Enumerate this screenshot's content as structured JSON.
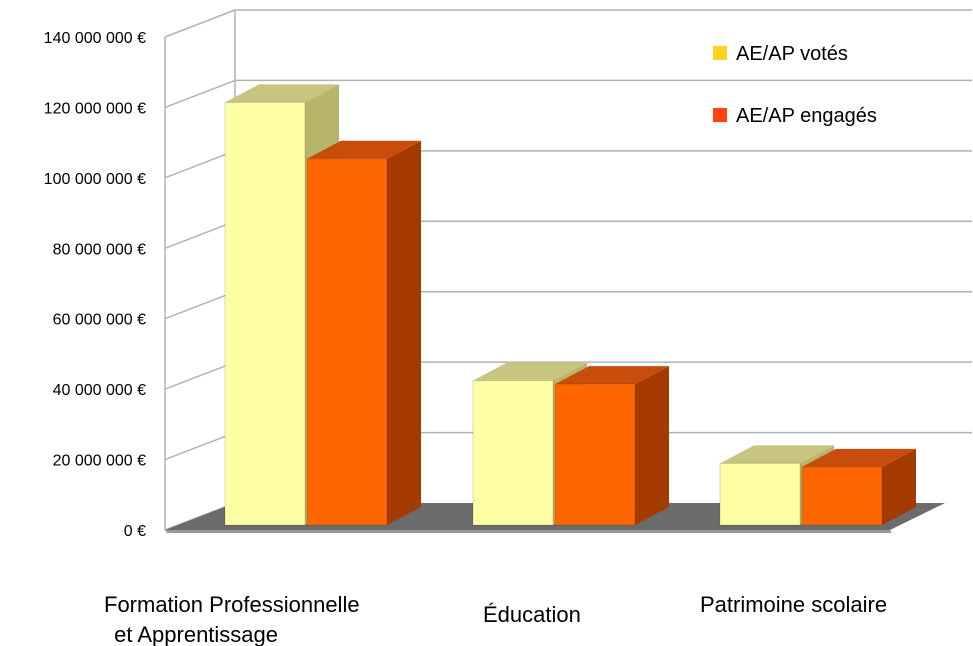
{
  "chart_data": {
    "type": "bar",
    "categories": [
      [
        "Formation Professionnelle",
        " et Apprentissage"
      ],
      [
        "Éducation"
      ],
      [
        "Patrimoine scolaire"
      ]
    ],
    "series": [
      {
        "name": "AE/AP votés",
        "values": [
          120000000,
          41000000,
          17500000
        ],
        "color": "#ffffa6",
        "legend_color": "#ffd320",
        "side_color": "#b8b46a",
        "top_color": "#c9c47f"
      },
      {
        "name": "AE/AP engagés",
        "values": [
          104000000,
          40000000,
          16500000
        ],
        "color": "#ff6600",
        "legend_color": "#ff420e",
        "side_color": "#a33b00",
        "top_color": "#c94d0a"
      }
    ],
    "ylim": [
      0,
      140000000
    ],
    "yticks": [
      0,
      20000000,
      40000000,
      60000000,
      80000000,
      100000000,
      120000000,
      140000000
    ],
    "ytick_labels": [
      "0 €",
      "20 000 000 €",
      "40 000 000 €",
      "60 000 000 €",
      "80 000 000 €",
      "100 000 000 €",
      "120 000 000 €",
      "140 000 000 €"
    ],
    "grid": true,
    "legend_position": "top-right",
    "style": "3d"
  }
}
